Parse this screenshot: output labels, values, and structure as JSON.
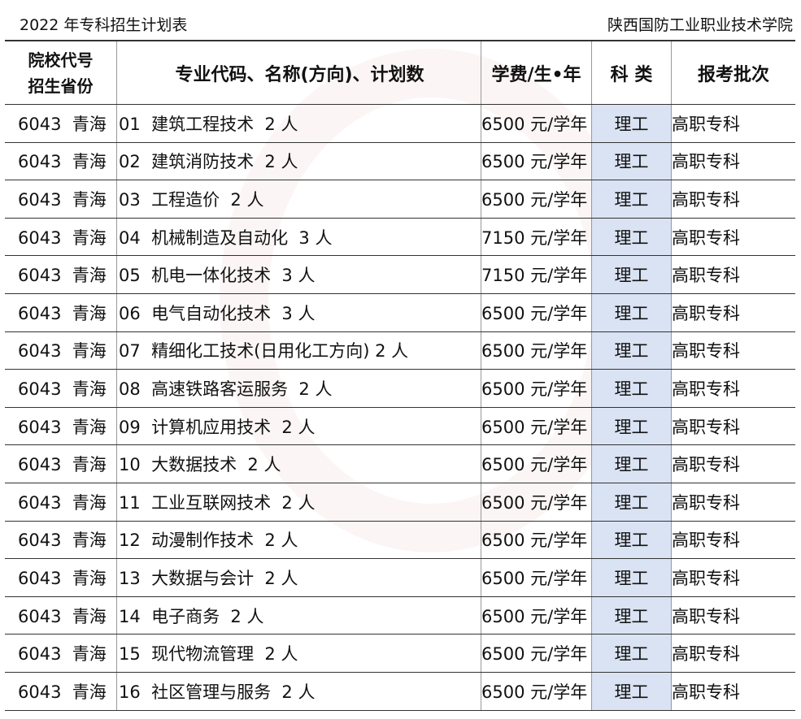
{
  "page": {
    "title": "2022 年专科招生计划表",
    "school": "陕西国防工业职业技术学院"
  },
  "colors": {
    "category_bg": "#dae3f3"
  },
  "table": {
    "headers": {
      "code_line1": "院校代号",
      "code_line2": "招生省份",
      "major": "专业代码、名称(方向)、计划数",
      "fee": "学费/生•年",
      "category": "科 类",
      "batch": "报考批次"
    },
    "rows": [
      {
        "code": "6043  青海",
        "major": "01  建筑工程技术  2 人",
        "fee": "6500 元/学年",
        "category": "理工",
        "batch": "高职专科"
      },
      {
        "code": "6043  青海",
        "major": "02  建筑消防技术  2 人",
        "fee": "6500 元/学年",
        "category": "理工",
        "batch": "高职专科"
      },
      {
        "code": "6043  青海",
        "major": "03  工程造价  2 人",
        "fee": "6500 元/学年",
        "category": "理工",
        "batch": "高职专科"
      },
      {
        "code": "6043  青海",
        "major": "04  机械制造及自动化  3 人",
        "fee": "7150 元/学年",
        "category": "理工",
        "batch": "高职专科"
      },
      {
        "code": "6043  青海",
        "major": "05  机电一体化技术  3 人",
        "fee": "7150 元/学年",
        "category": "理工",
        "batch": "高职专科"
      },
      {
        "code": "6043  青海",
        "major": "06  电气自动化技术  3 人",
        "fee": "6500 元/学年",
        "category": "理工",
        "batch": "高职专科"
      },
      {
        "code": "6043  青海",
        "major": "07  精细化工技术(日用化工方向) 2 人",
        "fee": "6500 元/学年",
        "category": "理工",
        "batch": "高职专科"
      },
      {
        "code": "6043  青海",
        "major": "08  高速铁路客运服务  2 人",
        "fee": "6500 元/学年",
        "category": "理工",
        "batch": "高职专科"
      },
      {
        "code": "6043  青海",
        "major": "09  计算机应用技术  2 人",
        "fee": "6500 元/学年",
        "category": "理工",
        "batch": "高职专科"
      },
      {
        "code": "6043  青海",
        "major": "10  大数据技术  2 人",
        "fee": "6500 元/学年",
        "category": "理工",
        "batch": "高职专科"
      },
      {
        "code": "6043  青海",
        "major": "11  工业互联网技术  2 人",
        "fee": "6500 元/学年",
        "category": "理工",
        "batch": "高职专科"
      },
      {
        "code": "6043  青海",
        "major": "12  动漫制作技术  2 人",
        "fee": "6500 元/学年",
        "category": "理工",
        "batch": "高职专科"
      },
      {
        "code": "6043  青海",
        "major": "13  大数据与会计  2 人",
        "fee": "6500 元/学年",
        "category": "理工",
        "batch": "高职专科"
      },
      {
        "code": "6043  青海",
        "major": "14  电子商务  2 人",
        "fee": "6500 元/学年",
        "category": "理工",
        "batch": "高职专科"
      },
      {
        "code": "6043  青海",
        "major": "15  现代物流管理  2 人",
        "fee": "6500 元/学年",
        "category": "理工",
        "batch": "高职专科"
      },
      {
        "code": "6043  青海",
        "major": "16  社区管理与服务  2 人",
        "fee": "6500 元/学年",
        "category": "理工",
        "batch": "高职专科"
      }
    ]
  }
}
